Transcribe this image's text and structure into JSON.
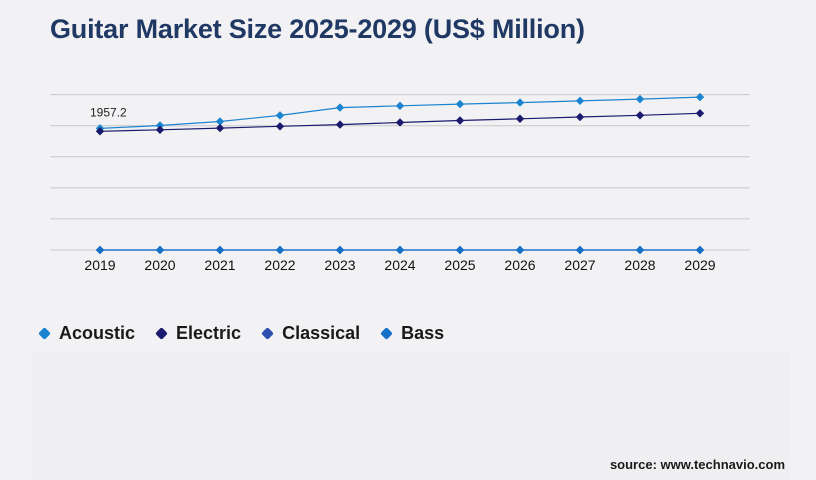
{
  "chart_data": {
    "type": "line",
    "title": "Guitar Market Size 2025-2029 (US$ Million)",
    "categories": [
      "2019",
      "2020",
      "2021",
      "2022",
      "2023",
      "2024",
      "2025",
      "2026",
      "2027",
      "2028",
      "2029"
    ],
    "series": [
      {
        "name": "Acoustic",
        "color": "#1a84d0",
        "values": [
          1957.2,
          2004,
          2068,
          2166,
          2292,
          2320,
          2348,
          2372,
          2400,
          2428,
          2460
        ]
      },
      {
        "name": "Electric",
        "color": "#1a1a6e",
        "values": [
          1910,
          1934,
          1962,
          1990,
          2018,
          2052,
          2084,
          2112,
          2140,
          2168,
          2200
        ]
      },
      {
        "name": "Classical",
        "color": "#2b4fb0",
        "values": [
          0,
          0,
          0,
          0,
          0,
          0,
          0,
          0,
          0,
          0,
          0
        ]
      },
      {
        "name": "Bass",
        "color": "#1570c8",
        "values": [
          0,
          0,
          0,
          0,
          0,
          0,
          0,
          0,
          0,
          0,
          0
        ]
      }
    ],
    "data_labels": [
      {
        "series": "Acoustic",
        "index": 0,
        "text": "1957.2"
      }
    ],
    "ylim": [
      0,
      2800
    ],
    "y_gridlines": [
      0,
      500,
      1000,
      1500,
      2000,
      2500
    ],
    "xlabel": "",
    "ylabel": "",
    "grid": true,
    "legend_position": "bottom-left"
  },
  "legend": {
    "items": [
      {
        "label": "Acoustic",
        "color": "#1a84d0"
      },
      {
        "label": "Electric",
        "color": "#1a1a6e"
      },
      {
        "label": "Classical",
        "color": "#2b4fb0"
      },
      {
        "label": "Bass",
        "color": "#1570c8"
      }
    ]
  },
  "source": "source: www.technavio.com"
}
